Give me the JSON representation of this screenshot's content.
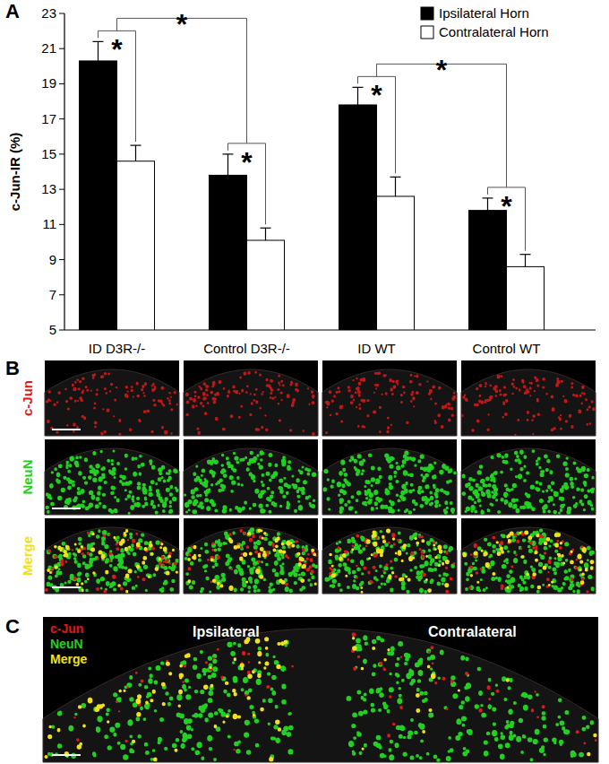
{
  "chart_data": {
    "type": "bar",
    "ylabel": "c-Jun-IR (%)",
    "categories": [
      "ID D3R-/-",
      "Control D3R-/-",
      "ID WT",
      "Control WT"
    ],
    "series": [
      {
        "name": "Ipsilateral Horn",
        "color": "#000000",
        "values": [
          20.3,
          13.8,
          17.8,
          11.8
        ],
        "errors": [
          1.1,
          1.2,
          1.0,
          0.7
        ]
      },
      {
        "name": "Contralateral Horn",
        "color": "#ffffff",
        "values": [
          14.6,
          10.1,
          12.6,
          8.6
        ],
        "errors": [
          0.9,
          0.7,
          1.1,
          0.7
        ]
      }
    ],
    "ylim": [
      5,
      23
    ],
    "yticks": [
      5,
      7,
      9,
      11,
      13,
      15,
      17,
      19,
      21,
      23
    ],
    "legend": "top-right",
    "significance": [
      {
        "label": "*",
        "groups": [
          "ID D3R-/-"
        ]
      },
      {
        "label": "*",
        "groups": [
          "Control D3R-/-"
        ]
      },
      {
        "label": "*",
        "groups": [
          "ID WT"
        ]
      },
      {
        "label": "*",
        "groups": [
          "Control WT"
        ]
      },
      {
        "label": "*",
        "groups": [
          "ID D3R-/-",
          "Control D3R-/-"
        ]
      },
      {
        "label": "*",
        "groups": [
          "ID WT",
          "Control WT"
        ]
      }
    ]
  },
  "figure": {
    "panel_labels": [
      "A",
      "B",
      "C"
    ],
    "panel_b": {
      "rows": [
        {
          "label": "c-Jun",
          "color": "#e01818"
        },
        {
          "label": "NeuN",
          "color": "#22d022"
        },
        {
          "label": "Merge",
          "color": "#f0e020"
        }
      ]
    },
    "panel_c": {
      "channels": [
        {
          "label": "c-Jun",
          "color": "#e01818"
        },
        {
          "label": "NeuN",
          "color": "#22d022"
        },
        {
          "label": "Merge",
          "color": "#f0e020"
        }
      ],
      "sides": [
        "Ipsilateral",
        "Contralateral"
      ]
    }
  }
}
